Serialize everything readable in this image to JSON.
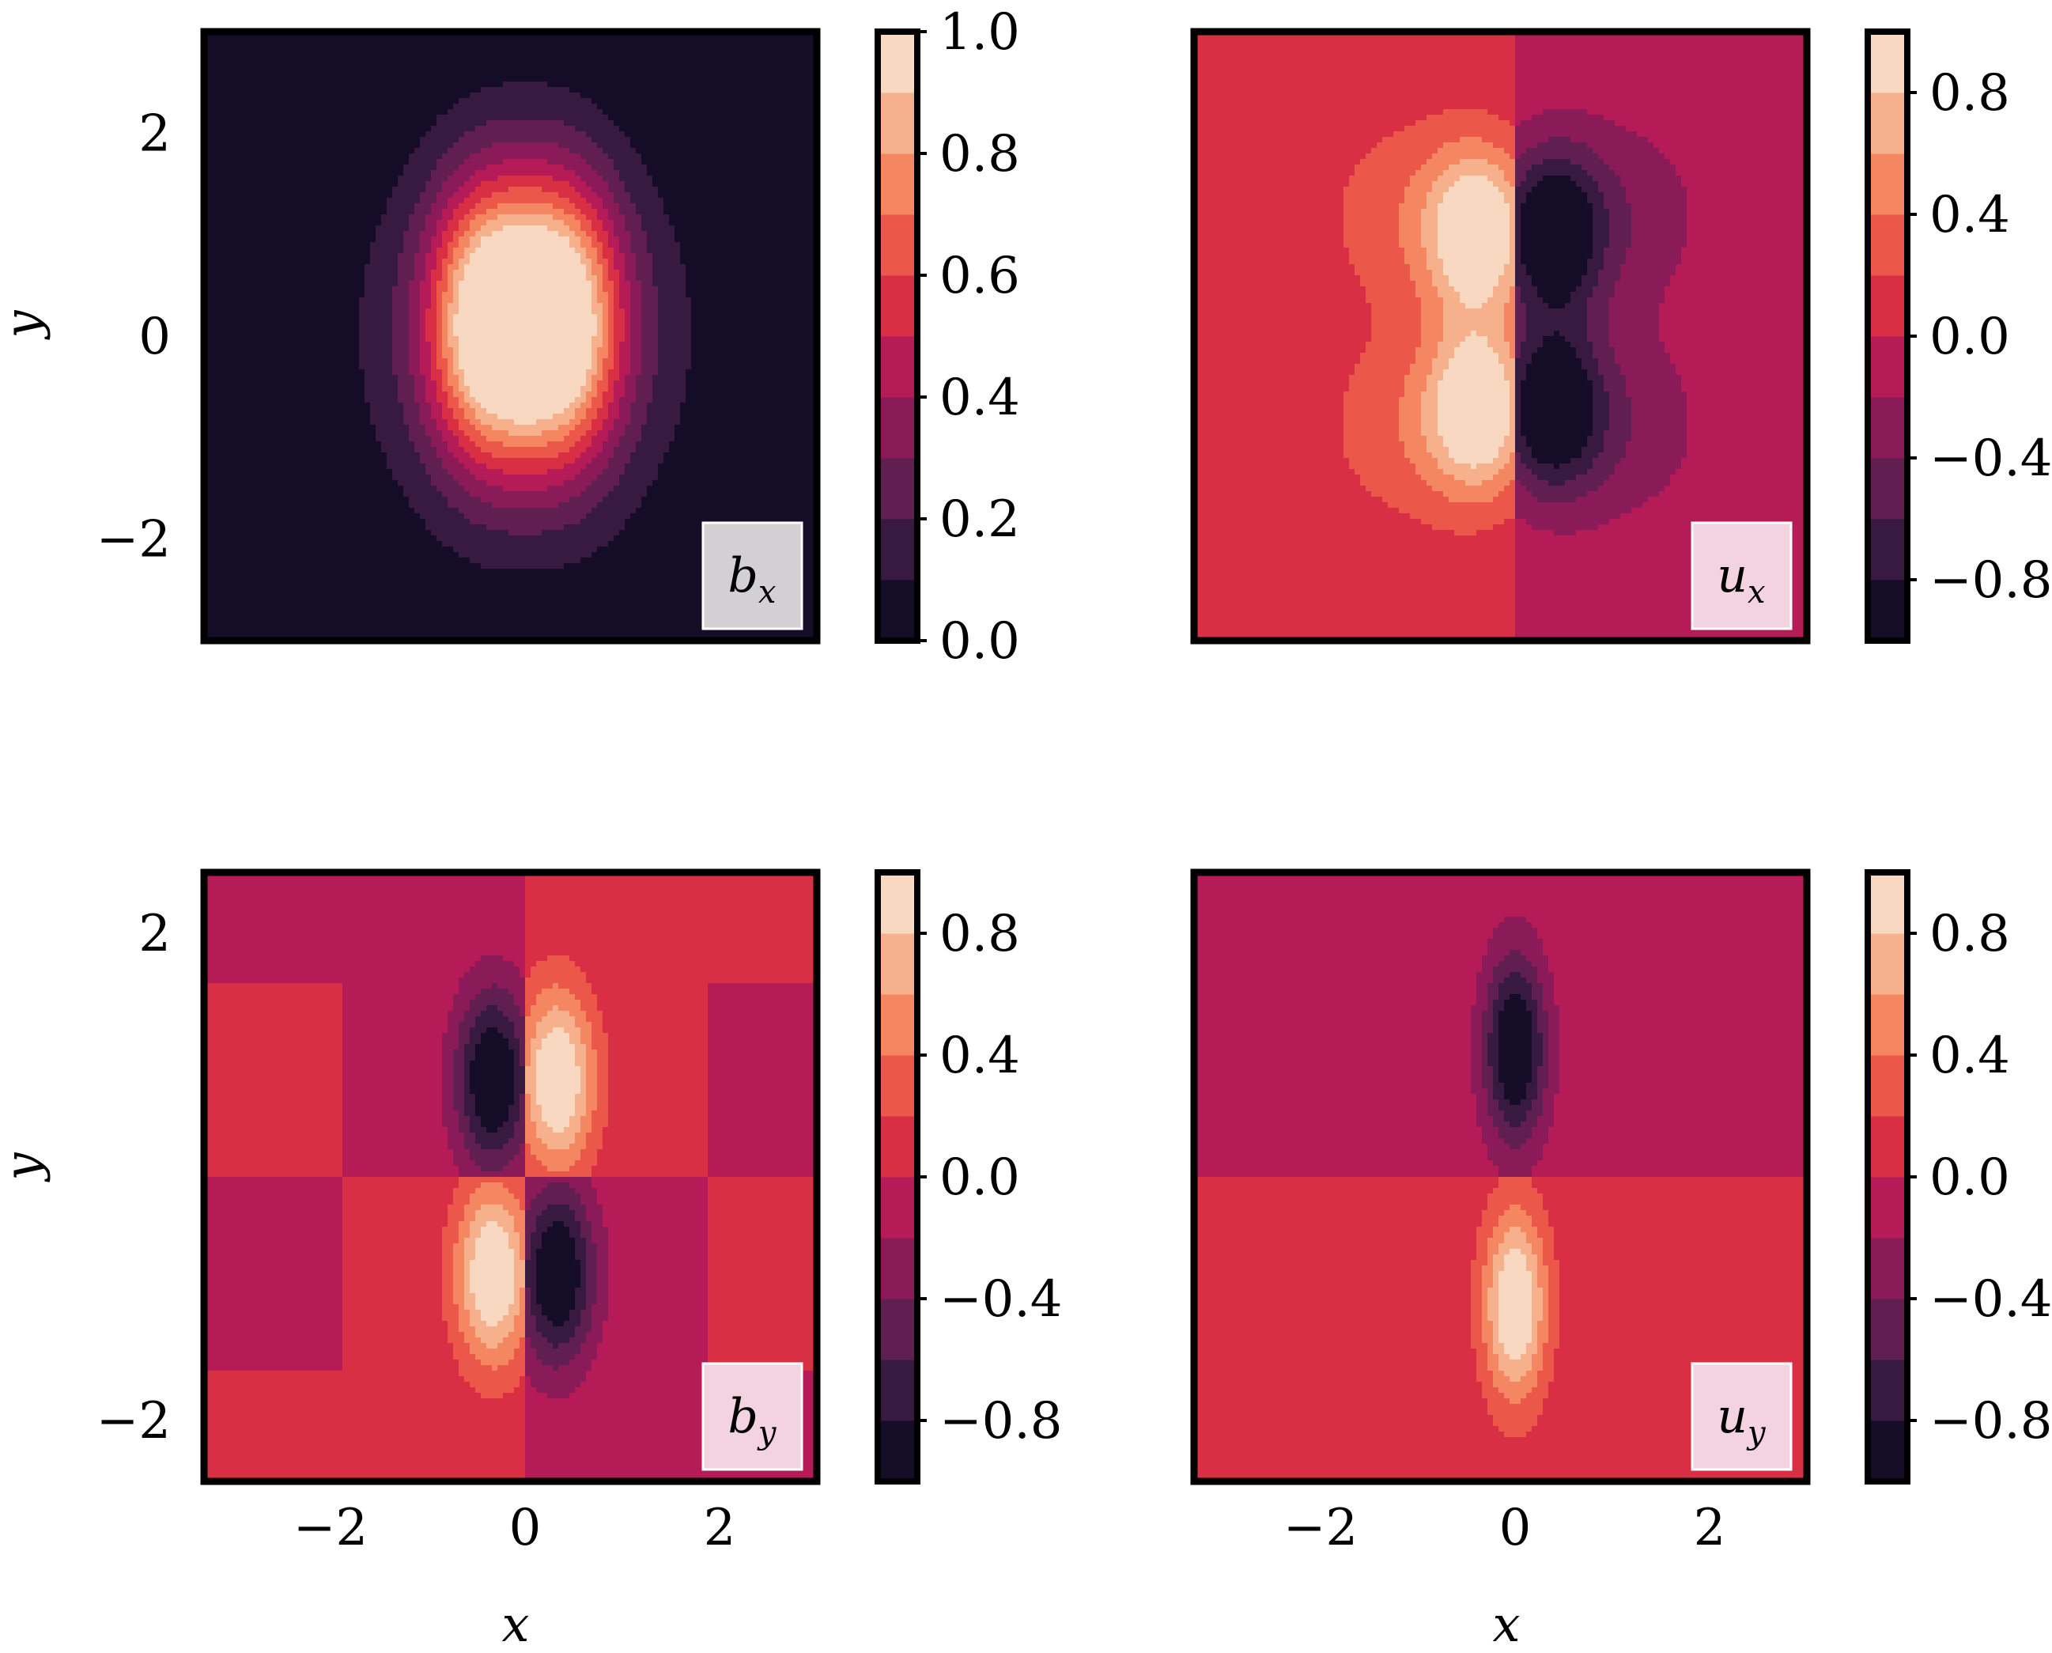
{
  "chart_data": [
    {
      "type": "heatmap",
      "subtype": "filled-contour",
      "panel_label": "b_x",
      "label_base": "b",
      "label_sub": "x",
      "xlabel": "",
      "ylabel": "y",
      "xlim": [
        -3.3,
        3.0
      ],
      "ylim": [
        -3.0,
        3.0
      ],
      "xticks": [],
      "yticks": [
        -2,
        0,
        2
      ],
      "ytick_labels": [
        "−2",
        "0",
        "2"
      ],
      "colorbar": {
        "range": [
          0.0,
          1.0
        ],
        "ticks": [
          0.0,
          0.2,
          0.4,
          0.6,
          0.8,
          1.0
        ],
        "tick_labels": [
          "0.0",
          "0.2",
          "0.4",
          "0.6",
          "0.8",
          "1.0"
        ],
        "levels": 10
      },
      "field": "bx",
      "description_values": {
        "peak": 1.0,
        "peak_locations": [
          [
            -0.35,
            0.2
          ],
          [
            0.35,
            0.2
          ]
        ]
      }
    },
    {
      "type": "heatmap",
      "subtype": "filled-contour",
      "panel_label": "u_x",
      "label_base": "u",
      "label_sub": "x",
      "xlabel": "",
      "ylabel": "",
      "xlim": [
        -3.3,
        3.0
      ],
      "ylim": [
        -3.0,
        3.0
      ],
      "xticks": [],
      "yticks": [],
      "colorbar": {
        "range": [
          -1.0,
          1.0
        ],
        "ticks": [
          -0.8,
          -0.4,
          0.0,
          0.4,
          0.8
        ],
        "tick_labels": [
          "−0.8",
          "−0.4",
          "0.0",
          "0.4",
          "0.8"
        ],
        "levels": 10
      },
      "field": "ux",
      "description_values": {
        "max": 1.0,
        "min": -1.0
      }
    },
    {
      "type": "heatmap",
      "subtype": "filled-contour",
      "panel_label": "b_y",
      "label_base": "b",
      "label_sub": "y",
      "xlabel": "x",
      "ylabel": "y",
      "xlim": [
        -3.3,
        3.0
      ],
      "ylim": [
        -2.5,
        2.5
      ],
      "xticks": [
        -2,
        0,
        2
      ],
      "xtick_labels": [
        "−2",
        "0",
        "2"
      ],
      "yticks": [
        -2,
        2
      ],
      "ytick_labels": [
        "−2",
        "2"
      ],
      "colorbar": {
        "range": [
          -1.0,
          1.0
        ],
        "ticks": [
          -0.8,
          -0.4,
          0.0,
          0.4,
          0.8
        ],
        "tick_labels": [
          "−0.8",
          "−0.4",
          "0.0",
          "0.4",
          "0.8"
        ],
        "levels": 10
      },
      "field": "by",
      "description_values": {
        "max": 1.0,
        "min": -1.0
      }
    },
    {
      "type": "heatmap",
      "subtype": "filled-contour",
      "panel_label": "u_y",
      "label_base": "u",
      "label_sub": "y",
      "xlabel": "x",
      "ylabel": "",
      "xlim": [
        -3.3,
        3.0
      ],
      "ylim": [
        -2.5,
        2.5
      ],
      "xticks": [
        -2,
        0,
        2
      ],
      "xtick_labels": [
        "−2",
        "0",
        "2"
      ],
      "yticks": [],
      "colorbar": {
        "range": [
          -1.0,
          1.0
        ],
        "ticks": [
          -0.8,
          -0.4,
          0.0,
          0.4,
          0.8
        ],
        "tick_labels": [
          "−0.8",
          "−0.4",
          "0.0",
          "0.4",
          "0.8"
        ],
        "levels": 10
      },
      "field": "uy",
      "description_values": {
        "max": 1.0,
        "min": -1.0
      }
    }
  ],
  "colormap": {
    "name": "rocket",
    "stops": [
      "#03051a",
      "#35193e",
      "#701f57",
      "#ad1759",
      "#e13342",
      "#f37651",
      "#f6b48f",
      "#faebdd"
    ]
  }
}
